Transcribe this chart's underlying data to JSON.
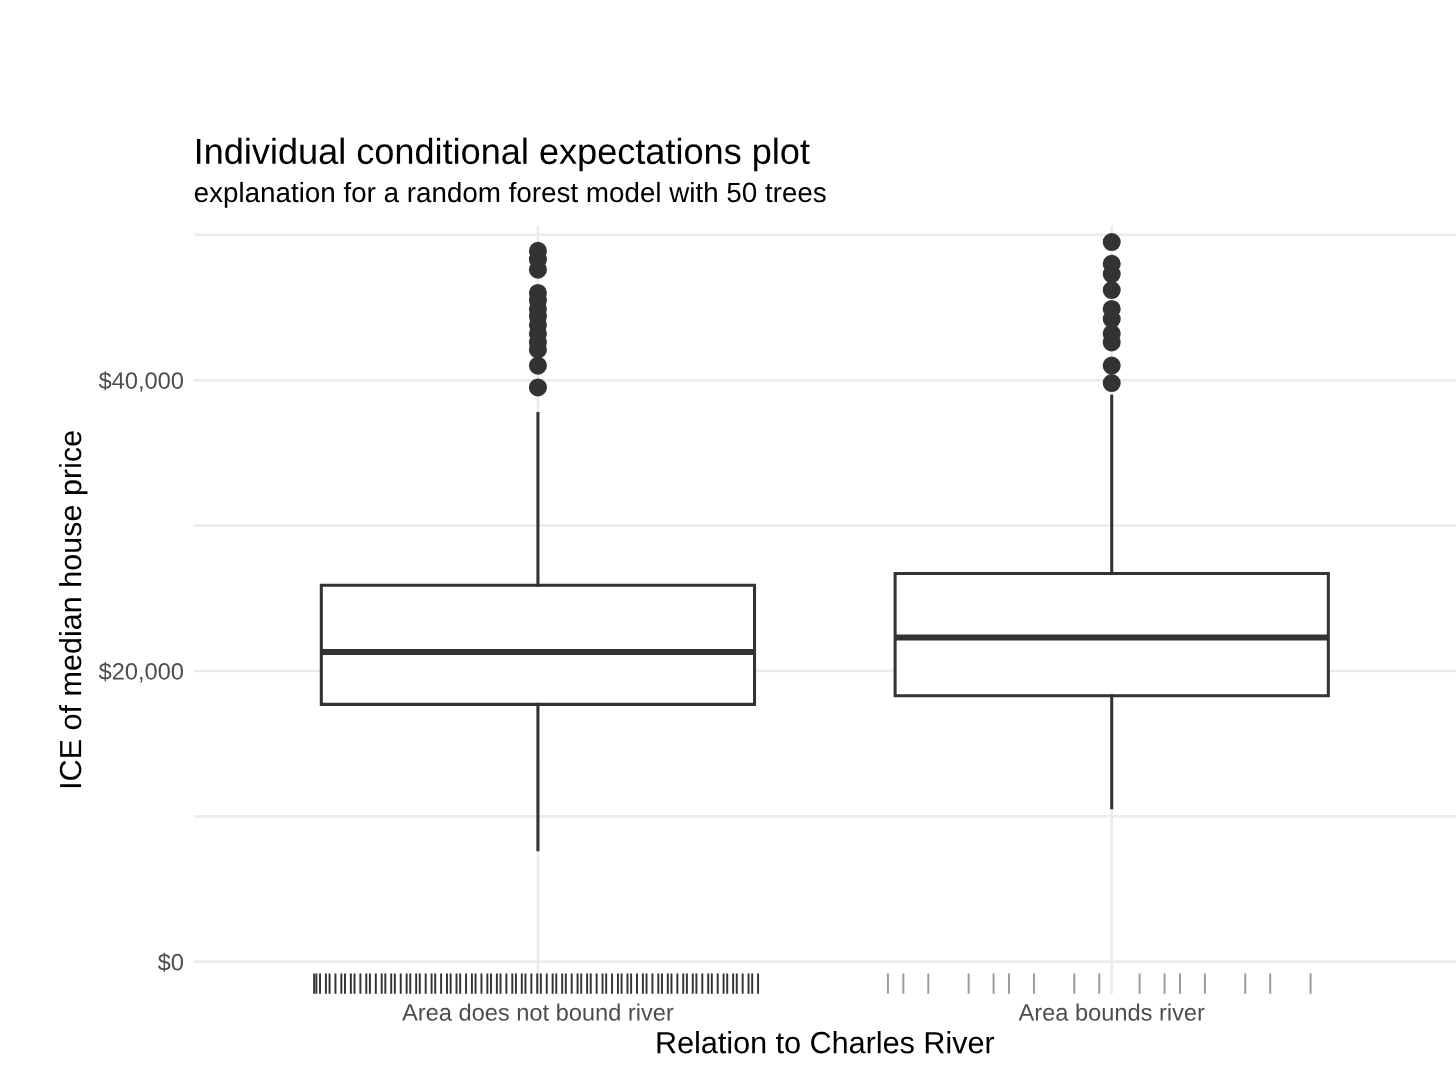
{
  "chart_data": {
    "type": "box",
    "title": "Individual conditional expectations plot",
    "subtitle": "explanation for a random forest model with 50 trees",
    "xlabel": "Relation to Charles River",
    "ylabel": "ICE of median house price",
    "categories": [
      "Area does not bound river",
      "Area bounds river"
    ],
    "boxes": [
      {
        "low": 7700,
        "q1": 17700,
        "median": 21300,
        "q3": 25900,
        "high": 37700,
        "outliers": [
          39500,
          41000,
          42100,
          42600,
          43200,
          43800,
          44400,
          44900,
          45500,
          46000,
          47600,
          48300,
          48900
        ]
      },
      {
        "low": 10600,
        "q1": 18300,
        "median": 22300,
        "q3": 26700,
        "high": 38900,
        "outliers": [
          39800,
          41000,
          42600,
          43200,
          44200,
          44900,
          46200,
          47300,
          48000,
          49500
        ]
      }
    ],
    "color": "#333333",
    "ylim": [
      -2200,
      50600
    ],
    "yticks": [
      {
        "value": 0,
        "label": "$0"
      },
      {
        "value": 10000,
        "label": null
      },
      {
        "value": 20000,
        "label": "$20,000"
      },
      {
        "value": 30000,
        "label": null
      },
      {
        "value": 40000,
        "label": "$40,000"
      },
      {
        "value": 50000,
        "label": null
      }
    ],
    "grid": true
  }
}
